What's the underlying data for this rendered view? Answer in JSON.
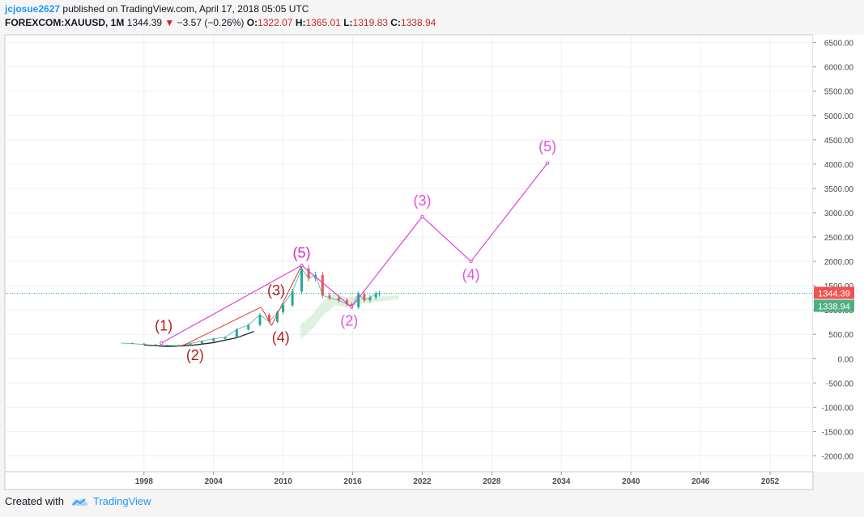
{
  "header": {
    "author": "jcjosue2627",
    "published_text": "published on TradingView.com, April 17, 2018 05:05 UTC",
    "symbol": "FOREXCOM:XAUUSD, 1M",
    "last_price": "1344.39",
    "change": "−3.57 (−0.26%)",
    "open_label": "O:",
    "open": "1322.07",
    "high_label": "H:",
    "high": "1365.01",
    "low_label": "L:",
    "low": "1319.83",
    "close_label": "C:",
    "close": "1338.94"
  },
  "footer": {
    "created_with": "Created with",
    "brand": "TradingView"
  },
  "colors": {
    "accent": "#2196f3",
    "projection": "#e040d8",
    "wave_red": "#e53935",
    "label_red": "#b71c1c",
    "candle_up": "#26a69a",
    "candle_down": "#ef5350",
    "price_badge_red": "#f05350",
    "price_badge_green": "#4caf82"
  },
  "chart_data": {
    "type": "line",
    "x_axis": {
      "ticks": [
        "1998",
        "2004",
        "2010",
        "2016",
        "2022",
        "2028",
        "2034",
        "2040",
        "2046",
        "2052"
      ],
      "range": [
        1986,
        2055.7
      ]
    },
    "y_axis": {
      "ticks": [
        "6500.00",
        "6000.00",
        "5500.00",
        "5000.00",
        "4500.00",
        "4000.00",
        "3500.00",
        "3000.00",
        "2500.00",
        "2000.00",
        "1500.00",
        "1000.00",
        "500.00",
        "0.00",
        "-500.00",
        "-1000.00",
        "-1500.00",
        "-2000.00"
      ],
      "range": [
        -2325,
        6660
      ]
    },
    "grid": true,
    "current_price": {
      "last": "1344.39",
      "close": "1338.94",
      "level": 1344.39
    },
    "price_series": [
      [
        1996.0,
        320
      ],
      [
        1997.0,
        310
      ],
      [
        1998.0,
        290
      ],
      [
        1999.0,
        270
      ],
      [
        2000.0,
        275
      ],
      [
        2001.0,
        265
      ],
      [
        2002.0,
        310
      ],
      [
        2003.0,
        360
      ],
      [
        2004.0,
        410
      ],
      [
        2005.0,
        440
      ],
      [
        2006.0,
        600
      ],
      [
        2007.0,
        690
      ],
      [
        2008.0,
        900
      ],
      [
        2008.8,
        760
      ],
      [
        2009.5,
        950
      ],
      [
        2010.0,
        1100
      ],
      [
        2010.8,
        1380
      ],
      [
        2011.6,
        1850
      ],
      [
        2012.2,
        1650
      ],
      [
        2012.8,
        1720
      ],
      [
        2013.4,
        1300
      ],
      [
        2014.0,
        1250
      ],
      [
        2014.8,
        1200
      ],
      [
        2015.5,
        1120
      ],
      [
        2015.9,
        1060
      ],
      [
        2016.5,
        1330
      ],
      [
        2017.0,
        1200
      ],
      [
        2017.5,
        1260
      ],
      [
        2018.0,
        1330
      ],
      [
        2018.3,
        1340
      ]
    ],
    "cloud": [
      [
        2011.5,
        700
      ],
      [
        2012.5,
        900
      ],
      [
        2013.5,
        1200
      ],
      [
        2014.5,
        1350
      ],
      [
        2015.5,
        1250
      ],
      [
        2016.5,
        1300
      ],
      [
        2017.5,
        1260
      ],
      [
        2018.5,
        1280
      ],
      [
        2020.0,
        1300
      ]
    ],
    "cloud_lower": [
      [
        2020.0,
        1220
      ],
      [
        2018.5,
        1180
      ],
      [
        2017.5,
        1150
      ],
      [
        2016.5,
        1120
      ],
      [
        2015.5,
        1050
      ],
      [
        2014.5,
        1100
      ],
      [
        2013.5,
        900
      ],
      [
        2012.5,
        600
      ],
      [
        2011.5,
        400
      ]
    ],
    "arc": [
      [
        1998.0,
        280
      ],
      [
        2000.0,
        250
      ],
      [
        2002.0,
        270
      ],
      [
        2004.0,
        330
      ],
      [
        2006.0,
        430
      ],
      [
        2007.5,
        560
      ]
    ],
    "inner_wave": {
      "points": [
        [
          2001.2,
          250
        ],
        [
          2008.1,
          1060
        ],
        [
          2009.0,
          680
        ],
        [
          2011.6,
          1920
        ]
      ],
      "labels": [
        {
          "text": "(1)",
          "x": 1999.7,
          "y": 580
        },
        {
          "text": "(2)",
          "x": 2002.4,
          "y": -30
        },
        {
          "text": "(3)",
          "x": 2009.4,
          "y": 1300
        },
        {
          "text": "(4)",
          "x": 2009.8,
          "y": 340
        },
        {
          "text": "(5)",
          "x": 2011.6,
          "y": 2080
        }
      ]
    },
    "projection_wave": {
      "points": [
        [
          1999.5,
          320
        ],
        [
          2011.6,
          1920
        ],
        [
          2015.9,
          1060
        ],
        [
          2022.0,
          2920
        ],
        [
          2026.2,
          2000
        ],
        [
          2032.8,
          4020
        ]
      ],
      "labels": [
        {
          "text": "(5)",
          "x": 2011.6,
          "y": 2080
        },
        {
          "text": "(2)",
          "x": 2015.7,
          "y": 680
        },
        {
          "text": "(3)",
          "x": 2022.0,
          "y": 3150
        },
        {
          "text": "(4)",
          "x": 2026.2,
          "y": 1630
        },
        {
          "text": "(5)",
          "x": 2032.8,
          "y": 4260
        }
      ]
    }
  }
}
